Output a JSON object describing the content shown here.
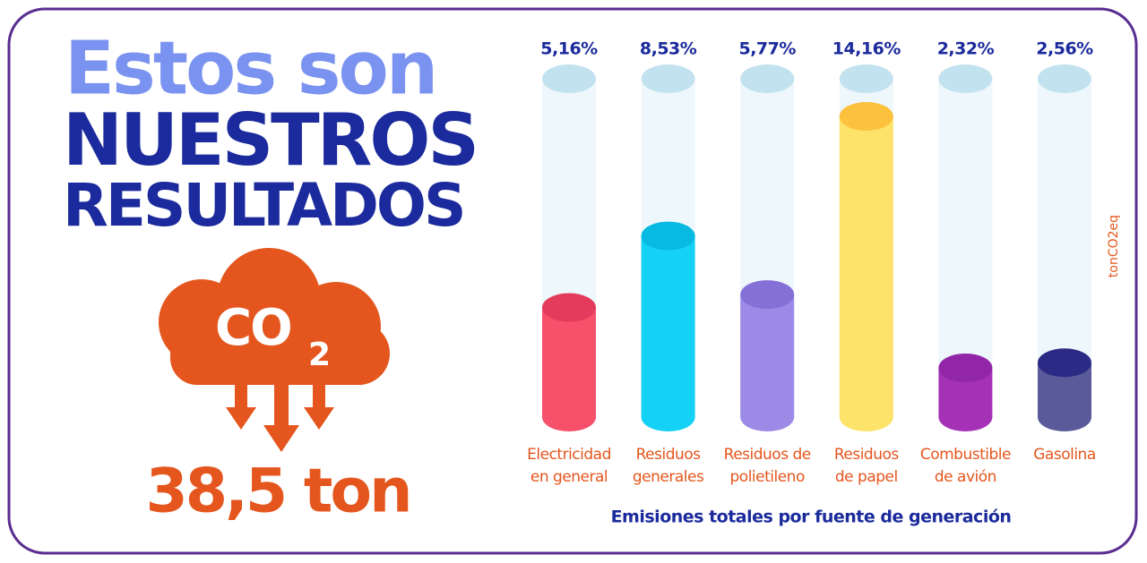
{
  "header": {
    "line1": "Estos son",
    "line2": "NUESTROS",
    "line3": "RESULTADOS"
  },
  "badge": {
    "co": "CO",
    "sub": "2",
    "total": "38,5 ton"
  },
  "chart_data": {
    "type": "bar",
    "categories": [
      [
        "Electricidad",
        "en general"
      ],
      [
        "Residuos",
        "generales"
      ],
      [
        "Residuos de",
        "polietileno"
      ],
      [
        "Residuos",
        "de papel"
      ],
      [
        "Combustible",
        "de avión"
      ],
      [
        "Gasolina"
      ]
    ],
    "values": [
      5.16,
      8.53,
      5.77,
      14.16,
      2.32,
      2.56
    ],
    "value_labels": [
      "5,16%",
      "8,53%",
      "5,77%",
      "14,16%",
      "2,32%",
      "2,56%"
    ],
    "colors": [
      "#f7506b",
      "#13d2f5",
      "#9c8ae6",
      "#fde36a",
      "#a531b7",
      "#5a5a9a"
    ],
    "top_colors": [
      "#e43b5c",
      "#08b9e2",
      "#8470d6",
      "#fcc13d",
      "#9126a8",
      "#2b2a85"
    ],
    "xlabel": "Emisiones totales por fuente de generación",
    "ylabel": "tonCO2eq"
  }
}
